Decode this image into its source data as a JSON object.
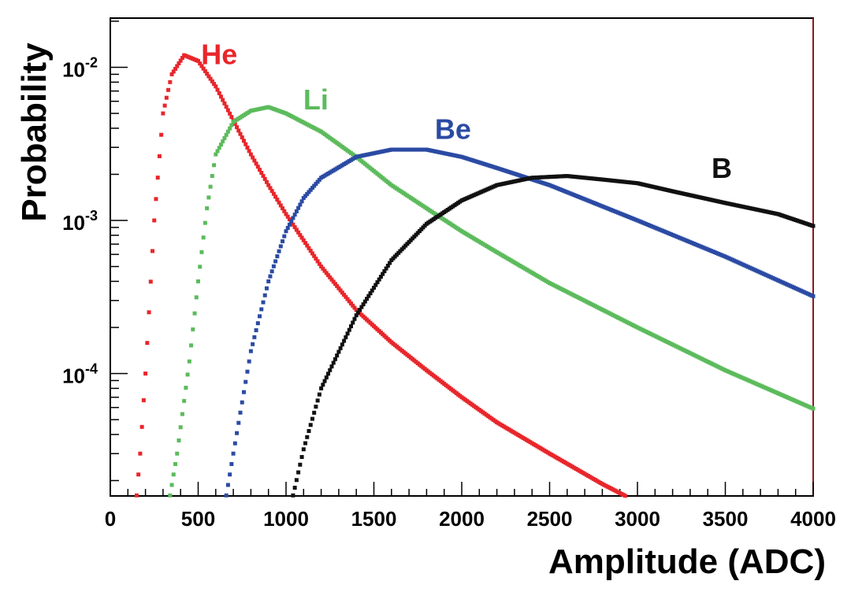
{
  "chart_data": {
    "type": "scatter",
    "title": "",
    "xlabel": "Amplitude (ADC)",
    "ylabel": "Probability",
    "xlim": [
      0,
      4000
    ],
    "ylim": [
      1.5e-05,
      0.02
    ],
    "yscale": "log",
    "grid": false,
    "x_ticks": [
      "0",
      "500",
      "1000",
      "1500",
      "2000",
      "2500",
      "3000",
      "3500",
      "4000"
    ],
    "y_ticks": [
      {
        "value": 0.0001,
        "base": "10",
        "exp": "-4"
      },
      {
        "value": 0.001,
        "base": "10",
        "exp": "-3"
      },
      {
        "value": 0.01,
        "base": "10",
        "exp": "-2"
      }
    ],
    "series": [
      {
        "name": "He",
        "color": "#e8262b",
        "points": [
          [
            150,
            1.6e-05
          ],
          [
            170,
            3e-05
          ],
          [
            200,
            0.0001
          ],
          [
            250,
            0.001
          ],
          [
            300,
            0.005
          ],
          [
            350,
            0.009
          ],
          [
            420,
            0.012
          ],
          [
            500,
            0.011
          ],
          [
            600,
            0.0075
          ],
          [
            700,
            0.0045
          ],
          [
            800,
            0.0027
          ],
          [
            900,
            0.0017
          ],
          [
            1000,
            0.0011
          ],
          [
            1200,
            0.0005
          ],
          [
            1400,
            0.00026
          ],
          [
            1600,
            0.00016
          ],
          [
            1800,
            0.000105
          ],
          [
            2000,
            7e-05
          ],
          [
            2200,
            4.8e-05
          ],
          [
            2500,
            3e-05
          ],
          [
            2800,
            1.9e-05
          ],
          [
            3050,
            1.35e-05
          ]
        ]
      },
      {
        "name": "Li",
        "color": "#5cbb5c",
        "points": [
          [
            340,
            1.6e-05
          ],
          [
            380,
            3e-05
          ],
          [
            450,
            0.00012
          ],
          [
            500,
            0.0004
          ],
          [
            550,
            0.0012
          ],
          [
            600,
            0.0027
          ],
          [
            700,
            0.0044
          ],
          [
            800,
            0.0052
          ],
          [
            900,
            0.0055
          ],
          [
            1000,
            0.005
          ],
          [
            1200,
            0.0038
          ],
          [
            1400,
            0.0026
          ],
          [
            1600,
            0.0017
          ],
          [
            1800,
            0.0012
          ],
          [
            2000,
            0.00085
          ],
          [
            2200,
            0.00062
          ],
          [
            2500,
            0.00039
          ],
          [
            3000,
            0.0002
          ],
          [
            3500,
            0.000105
          ],
          [
            4000,
            5.9e-05
          ]
        ]
      },
      {
        "name": "Be",
        "color": "#2b4aa3",
        "points": [
          [
            660,
            1.6e-05
          ],
          [
            700,
            3e-05
          ],
          [
            800,
            0.00014
          ],
          [
            900,
            0.0004
          ],
          [
            1000,
            0.00085
          ],
          [
            1100,
            0.0014
          ],
          [
            1200,
            0.0019
          ],
          [
            1400,
            0.0026
          ],
          [
            1600,
            0.0029
          ],
          [
            1800,
            0.0029
          ],
          [
            2000,
            0.0026
          ],
          [
            2200,
            0.0022
          ],
          [
            2500,
            0.0017
          ],
          [
            3000,
            0.001
          ],
          [
            3500,
            0.00058
          ],
          [
            4000,
            0.00032
          ]
        ]
      },
      {
        "name": "B",
        "color": "#111111",
        "points": [
          [
            1040,
            1.6e-05
          ],
          [
            1100,
            3.2e-05
          ],
          [
            1200,
            8e-05
          ],
          [
            1400,
            0.00024
          ],
          [
            1600,
            0.00055
          ],
          [
            1800,
            0.00095
          ],
          [
            2000,
            0.00135
          ],
          [
            2200,
            0.0017
          ],
          [
            2400,
            0.0019
          ],
          [
            2600,
            0.00195
          ],
          [
            2800,
            0.00185
          ],
          [
            3000,
            0.00175
          ],
          [
            3200,
            0.00155
          ],
          [
            3500,
            0.0013
          ],
          [
            3800,
            0.0011
          ],
          [
            4000,
            0.00092
          ]
        ]
      }
    ],
    "annotations": [
      {
        "text": "He",
        "x": 620,
        "y": 0.0105,
        "color": "#e8262b"
      },
      {
        "text": "Li",
        "x": 1170,
        "y": 0.0053,
        "color": "#5cbb5c"
      },
      {
        "text": "Be",
        "x": 1950,
        "y": 0.0034,
        "color": "#2b4aa3"
      },
      {
        "text": "B",
        "x": 3480,
        "y": 0.0019,
        "color": "#111111"
      }
    ]
  }
}
